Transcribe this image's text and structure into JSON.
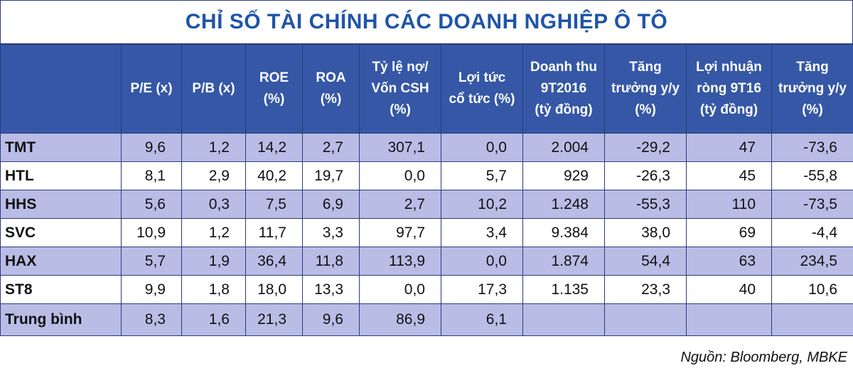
{
  "header": {
    "title": "CHỈ SỐ TÀI CHÍNH CÁC DOANH NGHIỆP Ô TÔ"
  },
  "table": {
    "columns": [
      [
        "P/E (x)"
      ],
      [
        "P/B (x)"
      ],
      [
        "ROE",
        "(%)"
      ],
      [
        "ROA",
        "(%)"
      ],
      [
        "Tỷ lệ nợ/",
        "Vốn CSH",
        "(%)"
      ],
      [
        "Lợi tức",
        "cổ tức  (%)"
      ],
      [
        "Doanh thu",
        "9T2016",
        "(tỷ đồng)"
      ],
      [
        "Tăng",
        "trưởng y/y",
        "(%)"
      ],
      [
        "Lợi nhuận",
        "ròng 9T16",
        "(tỷ đồng)"
      ],
      [
        "Tăng",
        "trưởng y/y",
        "(%)"
      ]
    ],
    "rows": [
      [
        "TMT",
        "9,6",
        "1,2",
        "14,2",
        "2,7",
        "307,1",
        "0,0",
        "2.004",
        "-29,2",
        "47",
        "-73,6"
      ],
      [
        "HTL",
        "8,1",
        "2,9",
        "40,2",
        "19,7",
        "0,0",
        "5,7",
        "929",
        "-26,3",
        "45",
        "-55,8"
      ],
      [
        "HHS",
        "5,6",
        "0,3",
        "7,5",
        "6,9",
        "2,7",
        "10,2",
        "1.248",
        "-55,3",
        "110",
        "-73,5"
      ],
      [
        "SVC",
        "10,9",
        "1,2",
        "11,7",
        "3,3",
        "97,7",
        "3,4",
        "9.384",
        "38,0",
        "69",
        "-4,4"
      ],
      [
        "HAX",
        "5,7",
        "1,9",
        "36,4",
        "11,8",
        "113,9",
        "0,0",
        "1.874",
        "54,4",
        "63",
        "234,5"
      ],
      [
        "ST8",
        "9,9",
        "1,8",
        "18,0",
        "13,3",
        "0,0",
        "17,3",
        "1.135",
        "23,3",
        "40",
        "10,6"
      ],
      [
        "Trung bình",
        "8,3",
        "1,6",
        "21,3",
        "9,6",
        "86,9",
        "6,1"
      ]
    ]
  },
  "footer": {
    "source": "Nguồn: Bloomberg, MBKE"
  }
}
